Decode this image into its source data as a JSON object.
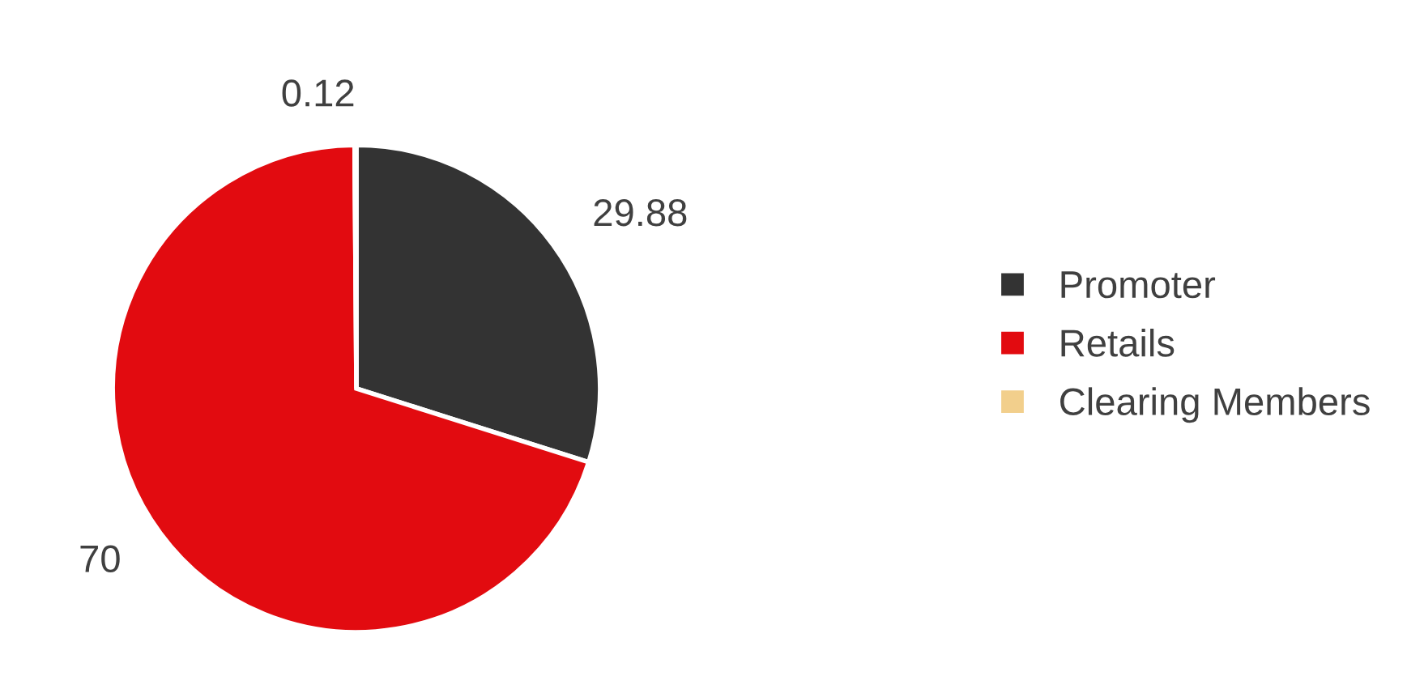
{
  "chart_data": {
    "type": "pie",
    "categories": [
      "Promoter",
      "Retails",
      "Clearing Members"
    ],
    "values": [
      29.88,
      70,
      0.12
    ],
    "colors": [
      "#333333",
      "#e20b10",
      "#f2cf8c"
    ],
    "data_labels": true,
    "legend": "right"
  }
}
